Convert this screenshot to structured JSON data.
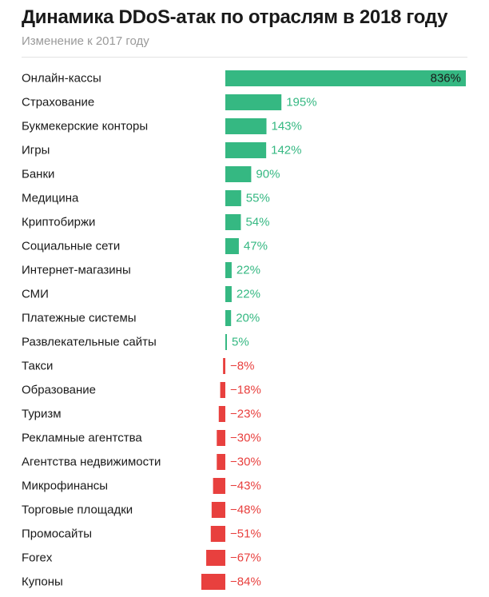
{
  "header": {
    "title": "Динамика DDoS-атак по отраслям в 2018 году",
    "subtitle": "Изменение к 2017 году"
  },
  "colors": {
    "positive": "#35b882",
    "negative": "#e8403e",
    "inside_label": "#1a1a1a"
  },
  "chart_data": {
    "type": "bar",
    "orientation": "horizontal",
    "title": "Динамика DDoS-атак по отраслям в 2018 году",
    "subtitle": "Изменение к 2017 году",
    "unit": "%",
    "categories": [
      "Онлайн-кассы",
      "Страхование",
      "Букмекерские конторы",
      "Игры",
      "Банки",
      "Медицина",
      "Криптобиржи",
      "Социальные сети",
      "Интернет-магазины",
      "СМИ",
      "Платежные системы",
      "Развлекательные сайты",
      "Такси",
      "Образование",
      "Туризм",
      "Рекламные агентства",
      "Агентства недвижимости",
      "Микрофинансы",
      "Торговые площадки",
      "Промосайты",
      "Forex",
      "Купоны"
    ],
    "values": [
      836,
      195,
      143,
      142,
      90,
      55,
      54,
      47,
      22,
      22,
      20,
      5,
      -8,
      -18,
      -23,
      -30,
      -30,
      -43,
      -48,
      -51,
      -67,
      -84
    ],
    "labels": [
      "836%",
      "195%",
      "143%",
      "142%",
      "90%",
      "55%",
      "54%",
      "47%",
      "22%",
      "22%",
      "20%",
      "5%",
      "−8%",
      "−18%",
      "−23%",
      "−30%",
      "−30%",
      "−43%",
      "−48%",
      "−51%",
      "−67%",
      "−84%"
    ]
  }
}
